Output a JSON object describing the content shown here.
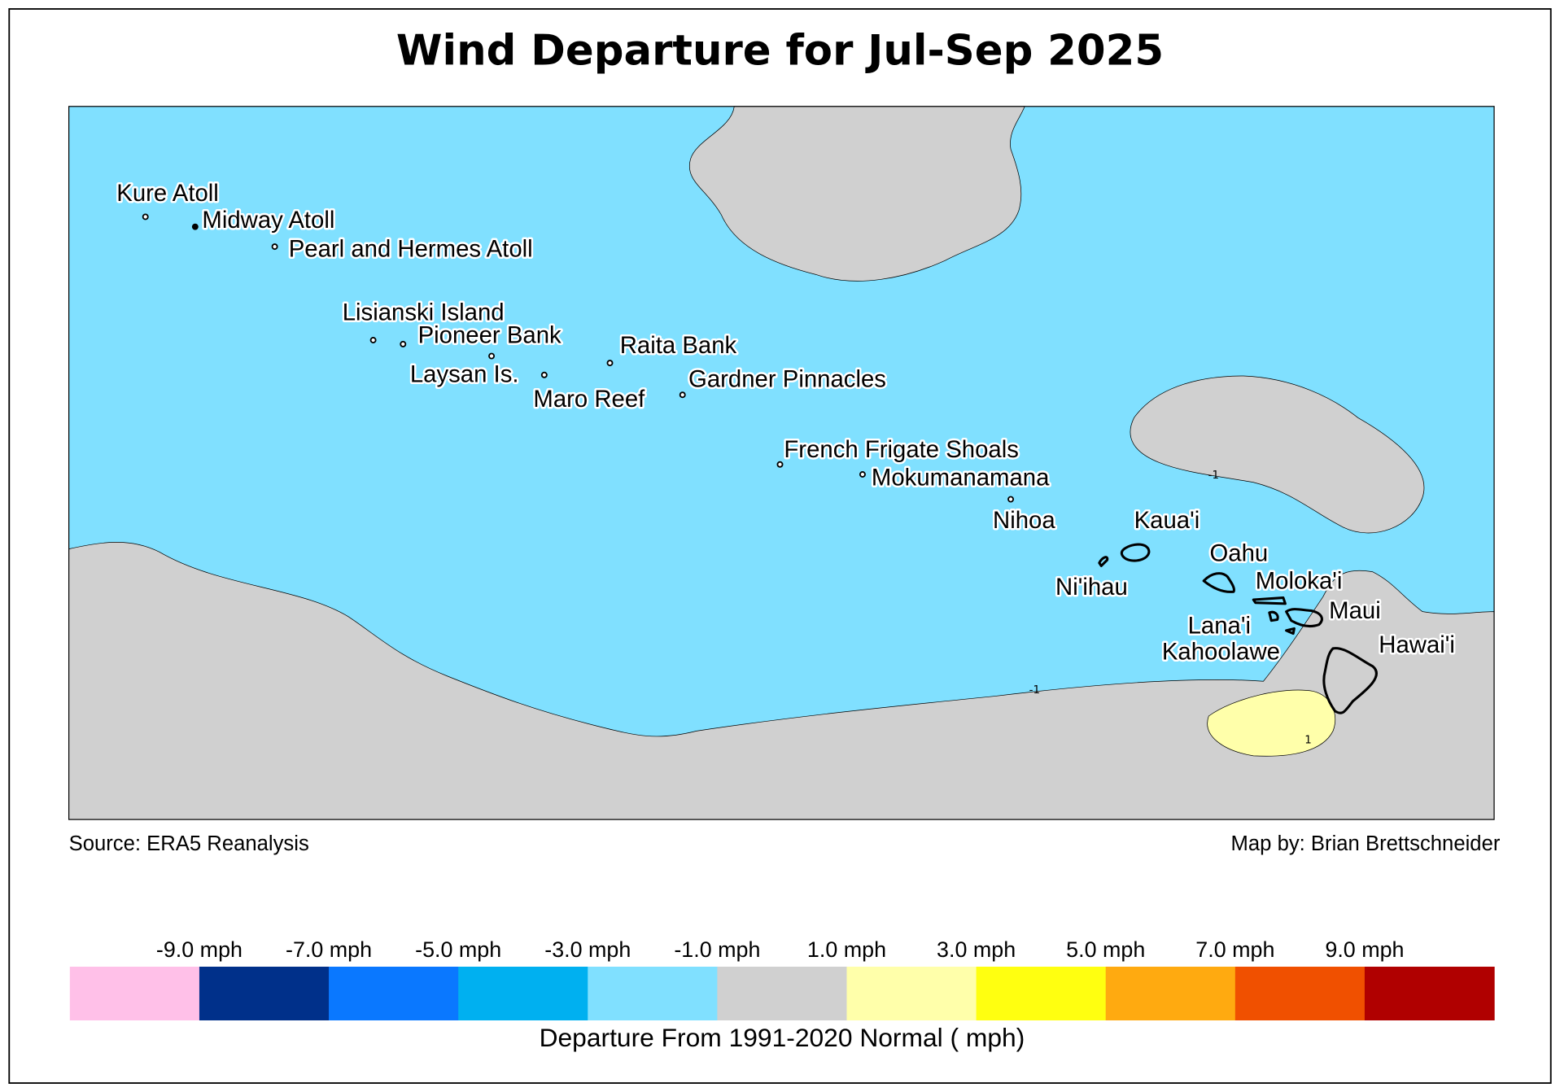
{
  "title": "Wind Departure for Jul-Sep 2025",
  "map": {
    "places": [
      "Kure Atoll",
      "Midway Atoll",
      "Pearl and Hermes Atoll",
      "Lisianski Island",
      "Pioneer Bank",
      "Raita Bank",
      "Laysan Is.",
      "Gardner Pinnacles",
      "Maro Reef",
      "French Frigate Shoals",
      "Mokumanamana",
      "Nihoa",
      "Kaua'i",
      "Oahu",
      "Ni'ihau",
      "Moloka'i",
      "Maui",
      "Lana'i",
      "Kahoolawe",
      "Hawai'i"
    ],
    "contour_labels": [
      "-1",
      "-1",
      "1"
    ]
  },
  "source": "Source: ERA5 Reanalysis",
  "credit": "Map by: Brian Brettschneider",
  "colorbar": {
    "colors": [
      "#ffc0e8",
      "#00308a",
      "#0a78ff",
      "#00b0f0",
      "#80e0ff",
      "#d0d0d0",
      "#ffffaa",
      "#ffff10",
      "#ffaa10",
      "#f05000",
      "#b00000"
    ],
    "tick_labels": [
      "-9.0 mph",
      "-7.0 mph",
      "-5.0 mph",
      "-3.0 mph",
      "-1.0 mph",
      "1.0 mph",
      "3.0 mph",
      "5.0 mph",
      "7.0 mph",
      "9.0 mph"
    ],
    "label": "Departure From 1991-2020 Normal ( mph)"
  }
}
